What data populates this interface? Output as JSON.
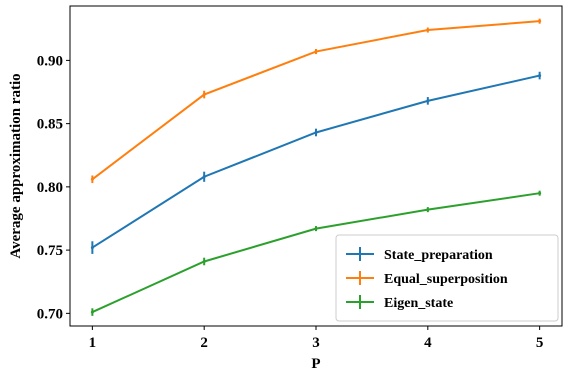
{
  "chart_data": {
    "type": "line",
    "title": "",
    "xlabel": "P",
    "ylabel": "Average approximation ratio",
    "x": [
      1,
      2,
      3,
      4,
      5
    ],
    "xticks": [
      "1",
      "2",
      "3",
      "4",
      "5"
    ],
    "xlim": [
      0.8,
      5.2
    ],
    "ylim": [
      0.69,
      0.943
    ],
    "yticks": [
      "0.70",
      "0.75",
      "0.80",
      "0.85",
      "0.90"
    ],
    "ytick_values": [
      0.7,
      0.75,
      0.8,
      0.85,
      0.9
    ],
    "grid": false,
    "legend_position": "lower-right",
    "error_bars": true,
    "series": [
      {
        "name": "State_preparation",
        "color": "#1f77b4",
        "values": [
          0.752,
          0.808,
          0.843,
          0.868,
          0.888
        ],
        "errors": [
          0.005,
          0.004,
          0.003,
          0.003,
          0.003
        ]
      },
      {
        "name": "Equal_superposition",
        "color": "#ff7f0e",
        "values": [
          0.806,
          0.873,
          0.907,
          0.924,
          0.931
        ],
        "errors": [
          0.003,
          0.003,
          0.002,
          0.002,
          0.002
        ]
      },
      {
        "name": "Eigen_state",
        "color": "#2ca02c",
        "values": [
          0.701,
          0.741,
          0.767,
          0.782,
          0.795
        ],
        "errors": [
          0.003,
          0.003,
          0.002,
          0.002,
          0.002
        ]
      }
    ]
  }
}
